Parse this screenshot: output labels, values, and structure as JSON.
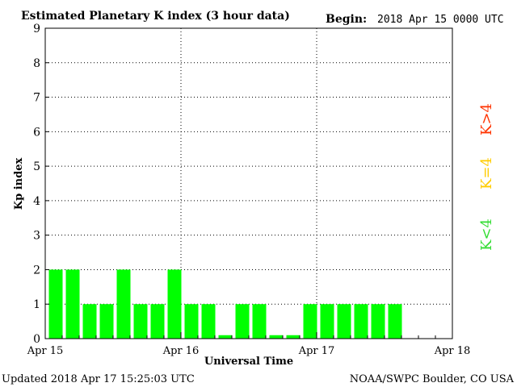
{
  "header": {
    "title": "Estimated Planetary K index (3 hour data)",
    "begin_label": "Begin:",
    "begin_value": "2018 Apr 15 0000 UTC"
  },
  "footer": {
    "updated": "Updated 2018 Apr 17 15:25:03 UTC",
    "credit": "NOAA/SWPC Boulder, CO USA"
  },
  "legend": {
    "high": "K>4",
    "mid": "K=4",
    "low": "K<4"
  },
  "colors": {
    "bar_low": "#00ff00",
    "bar_mid": "#ffcc00",
    "bar_high": "#ff3300",
    "legend_low": "#33dd33",
    "legend_mid": "#ffcc00",
    "legend_high": "#ff3300"
  },
  "chart_data": {
    "type": "bar",
    "xlabel": "Universal Time",
    "ylabel": "Kp index",
    "ylim": [
      0,
      9
    ],
    "yticks": [
      "0",
      "1",
      "2",
      "3",
      "4",
      "5",
      "6",
      "7",
      "8",
      "9"
    ],
    "xticks": [
      "Apr 15",
      "Apr 16",
      "Apr 17",
      "Apr 18"
    ],
    "interval_hours": 3,
    "grid": true,
    "values": [
      2,
      2,
      1,
      1,
      2,
      1,
      1,
      2,
      1,
      1,
      0.1,
      1,
      1,
      0.1,
      0.1,
      1,
      1,
      1,
      1,
      1,
      1
    ]
  }
}
